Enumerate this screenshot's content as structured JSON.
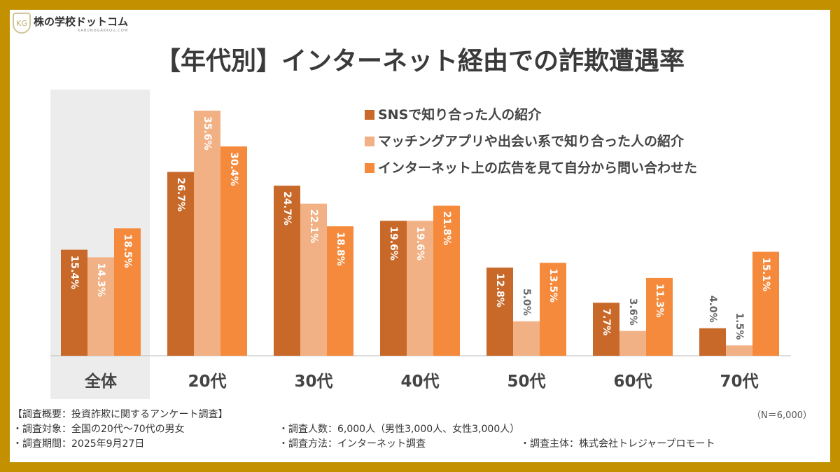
{
  "logo": {
    "name": "株の学校ドットコム",
    "sub": "KABUNOGAKKOU.COM"
  },
  "title": "【年代別】インターネット経由での詐欺遭遇率",
  "colors": {
    "border": "#c39100",
    "highlight_bg": "#ececec",
    "axis": "#bbbbbb"
  },
  "chart_data": {
    "type": "bar",
    "title": "【年代別】インターネット経由での詐欺遭遇率",
    "categories": [
      "全体",
      "20代",
      "30代",
      "40代",
      "50代",
      "60代",
      "70代"
    ],
    "unit": "%",
    "ylim": [
      0,
      36
    ],
    "grid": false,
    "legend_position": "top-right",
    "highlighted_category": "全体",
    "series": [
      {
        "name": "SNSで知り合った人の紹介",
        "color": "#c8692a",
        "values": [
          15.4,
          26.7,
          24.7,
          19.6,
          12.8,
          7.7,
          4.0
        ]
      },
      {
        "name": "マッチングアプリや出会い系で知り合った人の紹介",
        "color": "#f2b185",
        "values": [
          14.3,
          35.6,
          22.1,
          19.6,
          5.0,
          3.6,
          1.5
        ]
      },
      {
        "name": "インターネット上の広告を見て自分から問い合わせた",
        "color": "#f58a3c",
        "values": [
          18.5,
          30.4,
          18.8,
          21.8,
          13.5,
          11.3,
          15.1
        ]
      }
    ]
  },
  "footer": {
    "heading": "【調査概要：投資詐欺に関するアンケート調査】",
    "n": "（N＝6,000）",
    "target": "・調査対象：全国の20代～70代の男女",
    "count": "・調査人数：6,000人（男性3,000人、女性3,000人）",
    "period": "・調査期間：2025年9月27日",
    "method": "・調査方法：インターネット調査",
    "sponsor": "・調査主体：株式会社トレジャープロモート"
  }
}
